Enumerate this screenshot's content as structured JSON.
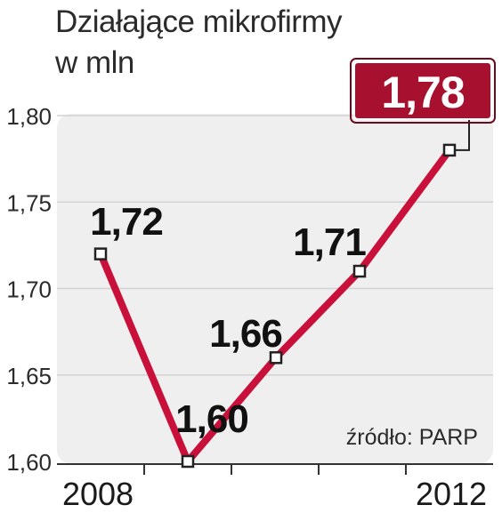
{
  "title_line1": "Działające mikrofirmy",
  "title_line2": "w mln",
  "source": "źródło: PARP",
  "colors": {
    "line": "#c8103a",
    "highlight_box": "#a8102f",
    "plot_bg": "#efefef",
    "grid": "#d2d2d2"
  },
  "chart_data": {
    "type": "line",
    "title": "Działające mikrofirmy",
    "subtitle": "w mln",
    "ylim": [
      1.6,
      1.8
    ],
    "y_ticks": [
      "1,60",
      "1,65",
      "1,70",
      "1,75",
      "1,80"
    ],
    "x_tick_labels": [
      "2008",
      "2012"
    ],
    "x": [
      2008,
      2009,
      2010,
      2011,
      2012
    ],
    "values": [
      1.72,
      1.6,
      1.66,
      1.71,
      1.78
    ],
    "labels": [
      "1,72",
      "1,60",
      "1,66",
      "1,71",
      "1,78"
    ],
    "highlighted_index": 4,
    "grid": true
  }
}
